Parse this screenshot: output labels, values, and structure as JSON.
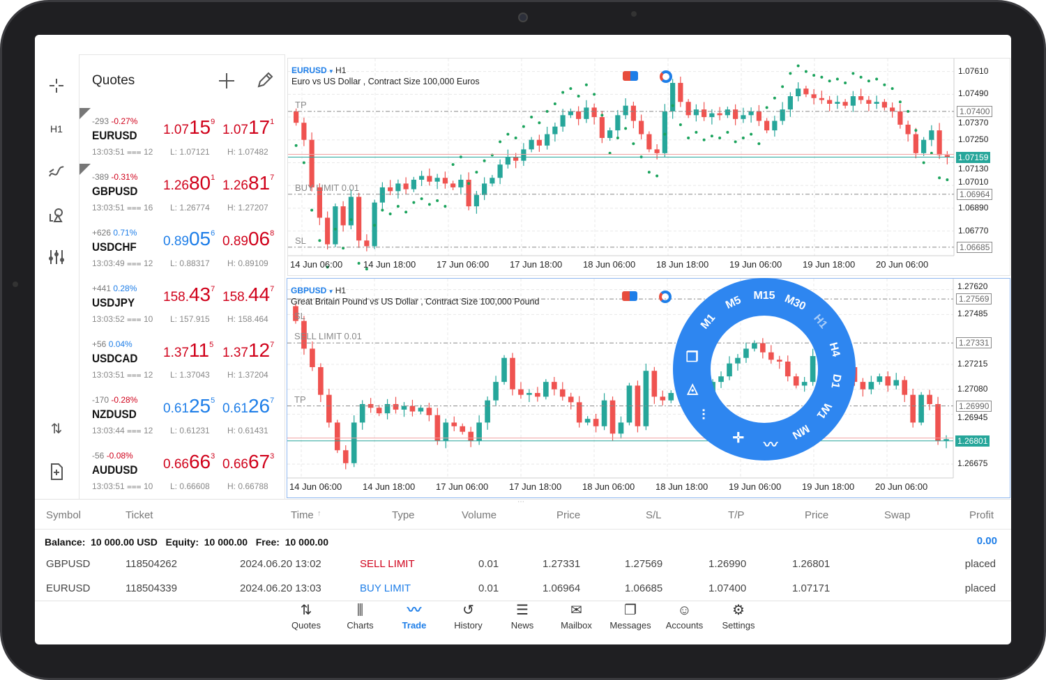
{
  "quotes": {
    "title": "Quotes",
    "add_icon": "plus-icon",
    "edit_icon": "pencil-icon",
    "items": [
      {
        "symbol": "EURUSD",
        "points": "-293",
        "pct": "-0.27%",
        "pct_color": "#d0021b",
        "time": "13:03:51",
        "spread": "12",
        "low": "L: 1.07121",
        "high": "H: 1.07482",
        "bid": [
          "1.07",
          "15",
          "9"
        ],
        "ask": [
          "1.07",
          "17",
          "1"
        ],
        "bid_color": "#d0021b",
        "ask_color": "#d0021b",
        "marker": true
      },
      {
        "symbol": "GBPUSD",
        "points": "-389",
        "pct": "-0.31%",
        "pct_color": "#d0021b",
        "time": "13:03:51",
        "spread": "16",
        "low": "L: 1.26774",
        "high": "H: 1.27207",
        "bid": [
          "1.26",
          "80",
          "1"
        ],
        "ask": [
          "1.26",
          "81",
          "7"
        ],
        "bid_color": "#d0021b",
        "ask_color": "#d0021b",
        "marker": true
      },
      {
        "symbol": "USDCHF",
        "points": "+626",
        "pct": "0.71%",
        "pct_color": "#1e7ee8",
        "time": "13:03:49",
        "spread": "12",
        "low": "L: 0.88317",
        "high": "H: 0.89109",
        "bid": [
          "0.89",
          "05",
          "6"
        ],
        "ask": [
          "0.89",
          "06",
          "8"
        ],
        "bid_color": "#1e7ee8",
        "ask_color": "#d0021b",
        "marker": false
      },
      {
        "symbol": "USDJPY",
        "points": "+441",
        "pct": "0.28%",
        "pct_color": "#1e7ee8",
        "time": "13:03:52",
        "spread": "10",
        "low": "L: 157.915",
        "high": "H: 158.464",
        "bid": [
          "158.",
          "43",
          "7"
        ],
        "ask": [
          "158.",
          "44",
          "7"
        ],
        "bid_color": "#d0021b",
        "ask_color": "#d0021b",
        "marker": false
      },
      {
        "symbol": "USDCAD",
        "points": "+56",
        "pct": "0.04%",
        "pct_color": "#1e7ee8",
        "time": "13:03:51",
        "spread": "12",
        "low": "L: 1.37043",
        "high": "H: 1.37204",
        "bid": [
          "1.37",
          "11",
          "5"
        ],
        "ask": [
          "1.37",
          "12",
          "7"
        ],
        "bid_color": "#d0021b",
        "ask_color": "#d0021b",
        "marker": false
      },
      {
        "symbol": "NZDUSD",
        "points": "-170",
        "pct": "-0.28%",
        "pct_color": "#d0021b",
        "time": "13:03:44",
        "spread": "12",
        "low": "L: 0.61231",
        "high": "H: 0.61431",
        "bid": [
          "0.61",
          "25",
          "5"
        ],
        "ask": [
          "0.61",
          "26",
          "7"
        ],
        "bid_color": "#1e7ee8",
        "ask_color": "#1e7ee8",
        "marker": false
      },
      {
        "symbol": "AUDUSD",
        "points": "-56",
        "pct": "-0.08%",
        "pct_color": "#d0021b",
        "time": "13:03:51",
        "spread": "10",
        "low": "L: 0.66608",
        "high": "H: 0.66788",
        "bid": [
          "0.66",
          "66",
          "3"
        ],
        "ask": [
          "0.66",
          "67",
          "3"
        ],
        "bid_color": "#d0021b",
        "ask_color": "#d0021b",
        "marker": false
      }
    ]
  },
  "left_toolbar": {
    "timeframe": "H1",
    "icons": [
      "crosshair-icon",
      "indicators-icon",
      "objects-icon",
      "settings-sliders-icon",
      "sort-arrows-icon",
      "add-document-icon"
    ]
  },
  "chart_data": [
    {
      "type": "candlestick",
      "symbol": "EURUSD",
      "timeframe": "H1",
      "description": "Euro vs US Dollar , Contract Size 100,000 Euros",
      "ylim": [
        1.0664,
        1.0766
      ],
      "y_ticks": [
        "1.07610",
        "1.07490",
        "1.07370",
        "1.07250",
        "1.07130",
        "1.07010",
        "1.06890",
        "1.06770"
      ],
      "x_ticks": [
        "14 Jun 06:00",
        "14 Jun 18:00",
        "17 Jun 06:00",
        "17 Jun 18:00",
        "18 Jun 06:00",
        "18 Jun 18:00",
        "19 Jun 06:00",
        "19 Jun 18:00",
        "20 Jun 06:00"
      ],
      "levels": [
        {
          "label": "TP",
          "value": "1.07400"
        },
        {
          "label": "BUY LIMIT 0.01",
          "value": "1.06964"
        },
        {
          "label": "SL",
          "value": "1.06685"
        }
      ],
      "bid": "1.07159",
      "closes": [
        1.0734,
        1.0725,
        1.07,
        1.0684,
        1.067,
        1.069,
        1.068,
        1.0695,
        1.0672,
        1.0669,
        1.0692,
        1.07,
        1.0698,
        1.0702,
        1.0699,
        1.0704,
        1.0706,
        1.0703,
        1.0705,
        1.0702,
        1.07,
        1.0704,
        1.069,
        1.0696,
        1.0702,
        1.0705,
        1.0712,
        1.0716,
        1.0714,
        1.072,
        1.0725,
        1.0722,
        1.0728,
        1.0732,
        1.0738,
        1.074,
        1.0736,
        1.0742,
        1.0737,
        1.0726,
        1.073,
        1.0738,
        1.0743,
        1.0735,
        1.0728,
        1.072,
        1.0718,
        1.074,
        1.0755,
        1.0745,
        1.0738,
        1.0741,
        1.0737,
        1.0739,
        1.0738,
        1.0741,
        1.0736,
        1.0738,
        1.074,
        1.0735,
        1.073,
        1.0735,
        1.0741,
        1.0748,
        1.0752,
        1.0749,
        1.0747,
        1.0746,
        1.0744,
        1.0745,
        1.0743,
        1.0748,
        1.0746,
        1.0744,
        1.0745,
        1.0742,
        1.074,
        1.0733,
        1.0728,
        1.0718,
        1.0725,
        1.073,
        1.0717,
        1.0716
      ]
    },
    {
      "type": "candlestick",
      "symbol": "GBPUSD",
      "timeframe": "H1",
      "description": "Great Britain Pound vs US Dollar , Contract Size 100,000 Pound",
      "ylim": [
        1.266,
        1.2766
      ],
      "y_ticks": [
        "1.27620",
        "1.27485",
        "1.27215",
        "1.27080",
        "1.26945",
        "1.26675"
      ],
      "x_ticks": [
        "14 Jun 06:00",
        "14 Jun 18:00",
        "17 Jun 06:00",
        "17 Jun 18:00",
        "18 Jun 06:00",
        "18 Jun 18:00",
        "19 Jun 06:00",
        "19 Jun 18:00",
        "20 Jun 06:00"
      ],
      "levels": [
        {
          "label": "SL",
          "value": "1.27569"
        },
        {
          "label": "SELL LIMIT 0.01",
          "value": "1.27331"
        },
        {
          "label": "TP",
          "value": "1.26990"
        }
      ],
      "bid": "1.26801",
      "closes": [
        1.2745,
        1.273,
        1.272,
        1.2705,
        1.269,
        1.2675,
        1.2668,
        1.269,
        1.27,
        1.2698,
        1.2695,
        1.27,
        1.2697,
        1.2699,
        1.2696,
        1.2698,
        1.2694,
        1.268,
        1.269,
        1.2688,
        1.2685,
        1.268,
        1.269,
        1.2702,
        1.2712,
        1.2725,
        1.2708,
        1.2705,
        1.2706,
        1.2704,
        1.2712,
        1.2708,
        1.2704,
        1.2701,
        1.269,
        1.2692,
        1.2688,
        1.2702,
        1.2684,
        1.269,
        1.271,
        1.2688,
        1.2718,
        1.2704,
        1.2702,
        1.2706,
        1.2708,
        1.2712,
        1.2705,
        1.2703,
        1.2712,
        1.2715,
        1.2722,
        1.2725,
        1.273,
        1.2733,
        1.2728,
        1.2724,
        1.2723,
        1.2715,
        1.271,
        1.2712,
        1.2726,
        1.2727,
        1.273,
        1.2722,
        1.272,
        1.2712,
        1.2708,
        1.2712,
        1.2715,
        1.271,
        1.2713,
        1.2705,
        1.269,
        1.2705,
        1.27,
        1.268,
        1.2681
      ]
    }
  ],
  "wheel": {
    "timeframes": [
      "M1",
      "M5",
      "M15",
      "M30",
      "H1",
      "H4",
      "D1",
      "W1",
      "MN"
    ],
    "active": "H1",
    "icons": [
      "indicators-icon",
      "crosshair-icon",
      "settings-sliders-icon",
      "objects-icon",
      "windows-icon"
    ]
  },
  "trade": {
    "columns": [
      "Symbol",
      "Ticket",
      "Time",
      "Type",
      "Volume",
      "Price",
      "S/L",
      "T/P",
      "Price",
      "Swap",
      "Profit"
    ],
    "sort_icon": "arrow-up-icon",
    "summary": "Balance:  10 000.00 USD   Equity:  10 000.00   Free:  10 000.00",
    "profit": "0.00",
    "rows": [
      {
        "symbol": "GBPUSD",
        "ticket": "118504262",
        "time": "2024.06.20 13:02",
        "type": "SELL LIMIT",
        "type_color": "#d0021b",
        "volume": "0.01",
        "price": "1.27331",
        "sl": "1.27569",
        "tp": "1.26990",
        "cur": "1.26801",
        "status": "placed"
      },
      {
        "symbol": "EURUSD",
        "ticket": "118504339",
        "time": "2024.06.20 13:03",
        "type": "BUY LIMIT",
        "type_color": "#1e7ee8",
        "volume": "0.01",
        "price": "1.06964",
        "sl": "1.06685",
        "tp": "1.07400",
        "cur": "1.07171",
        "status": "placed"
      }
    ]
  },
  "nav": {
    "active": "Trade",
    "accent": "#1e7ee8",
    "items": [
      {
        "label": "Quotes",
        "icon": "⇅"
      },
      {
        "label": "Charts",
        "icon": "⫼"
      },
      {
        "label": "Trade",
        "icon": "〰"
      },
      {
        "label": "History",
        "icon": "↺"
      },
      {
        "label": "News",
        "icon": "☰"
      },
      {
        "label": "Mailbox",
        "icon": "✉"
      },
      {
        "label": "Messages",
        "icon": "❐"
      },
      {
        "label": "Accounts",
        "icon": "☺"
      },
      {
        "label": "Settings",
        "icon": "⚙"
      }
    ]
  }
}
